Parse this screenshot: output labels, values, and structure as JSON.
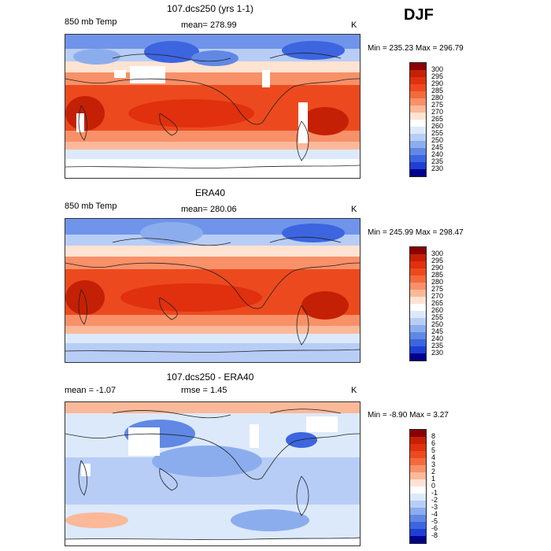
{
  "season": "DJF",
  "panels": [
    {
      "title": "107.dcs250 (yrs 1-1)",
      "left_label": "850 mb Temp",
      "center_label": "mean= 278.99",
      "units": "K",
      "minmax": "Min = 235.23 Max = 296.79",
      "colorbar_ticks": [
        "300",
        "295",
        "290",
        "285",
        "280",
        "275",
        "270",
        "265",
        "260",
        "255",
        "250",
        "245",
        "240",
        "235",
        "230"
      ]
    },
    {
      "title": "ERA40",
      "left_label": "850 mb Temp",
      "center_label": "mean= 280.06",
      "units": "K",
      "minmax": "Min = 245.99 Max = 298.47",
      "colorbar_ticks": [
        "300",
        "295",
        "290",
        "285",
        "280",
        "275",
        "270",
        "265",
        "260",
        "255",
        "250",
        "245",
        "240",
        "235",
        "230"
      ]
    },
    {
      "title": "107.dcs250 - ERA40",
      "left_label": "mean =  -1.07",
      "center_label": "rmse =   1.45",
      "units": "K",
      "minmax": "Min =  -8.90 Max =   3.27",
      "colorbar_ticks": [
        "8",
        "6",
        "5",
        "4",
        "3",
        "2",
        "1",
        "0",
        "-1",
        "-2",
        "-3",
        "-4",
        "-5",
        "-6",
        "-8"
      ]
    }
  ],
  "colors": {
    "temp_scale": [
      "#8b0000",
      "#c42005",
      "#e0300e",
      "#ec4a1e",
      "#f36a3c",
      "#f89068",
      "#fbb999",
      "#ffe3d2",
      "#dce9fb",
      "#b7cdf6",
      "#8caded",
      "#6088e4",
      "#3d65e0",
      "#1e3fd1",
      "#0a1a9a",
      "#00008b"
    ],
    "diff_scale": [
      "#8b0000",
      "#c42005",
      "#e0300e",
      "#ec4a1e",
      "#f36a3c",
      "#f89068",
      "#fbb999",
      "#ffe3d2",
      "#dce9fb",
      "#b7cdf6",
      "#8caded",
      "#6088e4",
      "#3d65e0",
      "#1e3fd1",
      "#0a1a9a",
      "#00008b"
    ]
  }
}
